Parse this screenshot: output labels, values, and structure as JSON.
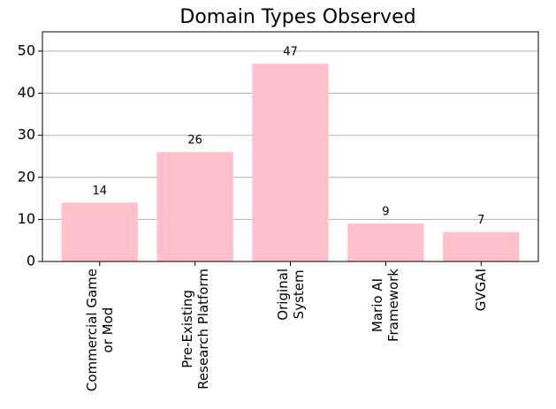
{
  "chart_data": {
    "type": "bar",
    "title": "Domain Types Observed",
    "categories": [
      "Commercial Game\nor Mod",
      "Pre-Existing\nResearch Platform",
      "Original\nSystem",
      "Mario AI\nFramework",
      "GVGAI"
    ],
    "values": [
      14,
      26,
      47,
      9,
      7
    ],
    "color": "#ffc0cb",
    "ylim": [
      0,
      54.6
    ],
    "yticks": [
      0,
      10,
      20,
      30,
      40,
      50
    ],
    "grid": true
  }
}
